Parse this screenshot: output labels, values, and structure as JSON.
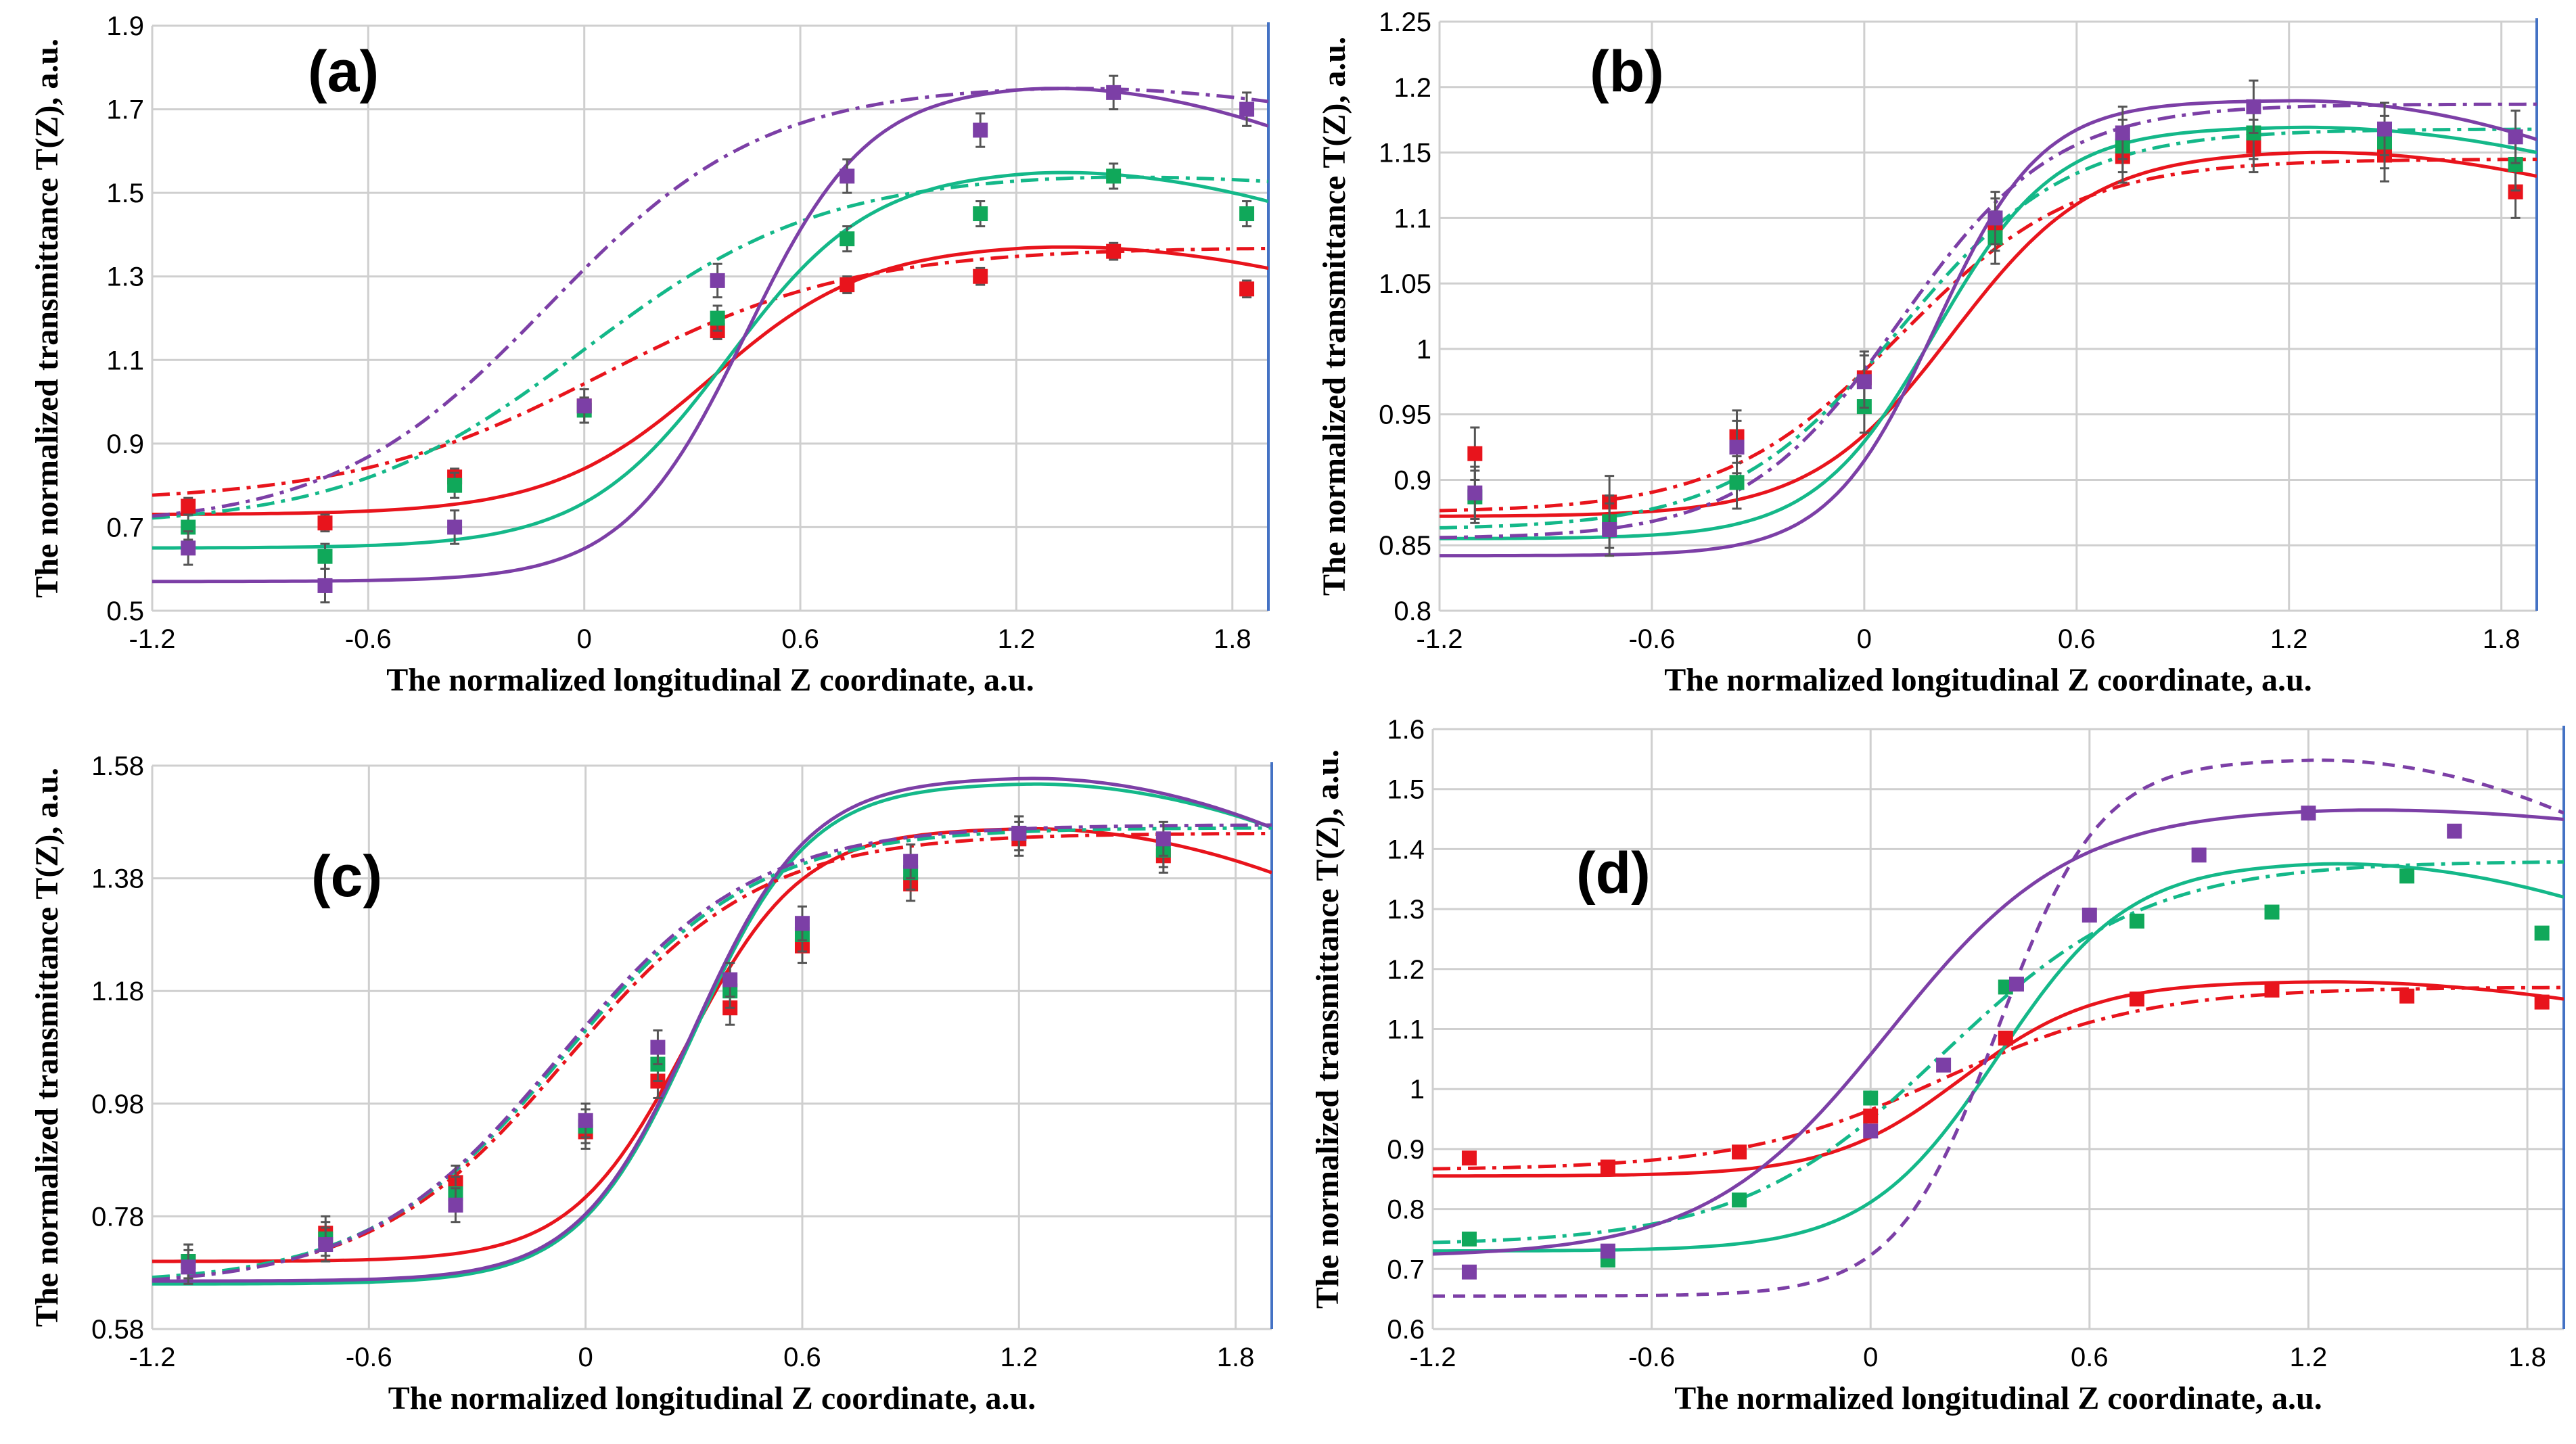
{
  "colors": {
    "red": "#e8141c",
    "green": "#10a85a",
    "purple": "#7c3fa6",
    "curve_green": "#14b889"
  },
  "chart_data": [
    {
      "type": "scatter",
      "panel_label": "(a)",
      "xlabel": "The normalized  longitudinal Z coordinate, a.u.",
      "ylabel": "The normalized  transmittance  T(Z), a.u.",
      "xlim": [
        -1.2,
        1.9
      ],
      "ylim": [
        0.5,
        1.9
      ],
      "x_ticks": [
        -1.2,
        -0.6,
        0,
        0.6,
        1.2,
        1.8
      ],
      "x_tick_labels": [
        "-1.2",
        "-0.6",
        "0",
        "0.6",
        "1.2",
        "1.8"
      ],
      "y_ticks": [
        0.5,
        0.7,
        0.9,
        1.1,
        1.3,
        1.5,
        1.7,
        1.9
      ],
      "y_tick_labels": [
        "0.5",
        "0.7",
        "0.9",
        "1.1",
        "1.3",
        "1.5",
        "1.7",
        "1.9"
      ],
      "series": [
        {
          "name": "red",
          "color": "#e8141c",
          "error": 0.02,
          "points": [
            [
              -1.1,
              0.75
            ],
            [
              -0.72,
              0.71
            ],
            [
              -0.36,
              0.82
            ],
            [
              0,
              0.99
            ],
            [
              0.37,
              1.17
            ],
            [
              0.73,
              1.28
            ],
            [
              1.1,
              1.3
            ],
            [
              1.47,
              1.36
            ],
            [
              1.84,
              1.27
            ]
          ]
        },
        {
          "name": "green",
          "color": "#10a85a",
          "error": 0.03,
          "points": [
            [
              -1.1,
              0.7
            ],
            [
              -0.72,
              0.63
            ],
            [
              -0.36,
              0.8
            ],
            [
              0,
              0.98
            ],
            [
              0.37,
              1.2
            ],
            [
              0.73,
              1.39
            ],
            [
              1.1,
              1.45
            ],
            [
              1.47,
              1.54
            ],
            [
              1.84,
              1.45
            ]
          ]
        },
        {
          "name": "purple",
          "color": "#7c3fa6",
          "error": 0.04,
          "points": [
            [
              -1.1,
              0.65
            ],
            [
              -0.72,
              0.56
            ],
            [
              -0.36,
              0.7
            ],
            [
              0,
              0.99
            ],
            [
              0.37,
              1.29
            ],
            [
              0.73,
              1.54
            ],
            [
              1.1,
              1.65
            ],
            [
              1.47,
              1.74
            ],
            [
              1.84,
              1.7
            ]
          ]
        }
      ],
      "curves": [
        {
          "name": "red-fit",
          "color": "#e8141c",
          "style": "solid",
          "low": 0.73,
          "high": 1.38,
          "center": 0.35,
          "width": 0.22,
          "drop": 0.06
        },
        {
          "name": "red-fit-dashdot",
          "color": "#e8141c",
          "style": "dashdot",
          "low": 0.76,
          "high": 1.37,
          "center": 0.05,
          "width": 0.35,
          "drop": 0.0
        },
        {
          "name": "green-fit",
          "color": "#14b889",
          "style": "solid",
          "low": 0.65,
          "high": 1.56,
          "center": 0.4,
          "width": 0.2,
          "drop": 0.08
        },
        {
          "name": "green-fit-dashdot",
          "color": "#14b889",
          "style": "dashdot",
          "low": 0.7,
          "high": 1.55,
          "center": 0.0,
          "width": 0.33,
          "drop": 0.02
        },
        {
          "name": "purple-fit",
          "color": "#7c3fa6",
          "style": "solid",
          "low": 0.57,
          "high": 1.76,
          "center": 0.45,
          "width": 0.17,
          "drop": 0.1
        },
        {
          "name": "purple-fit-dashdot",
          "color": "#7c3fa6",
          "style": "dashdot",
          "low": 0.7,
          "high": 1.76,
          "center": -0.1,
          "width": 0.3,
          "drop": 0.04
        }
      ]
    },
    {
      "type": "scatter",
      "panel_label": "(b)",
      "xlabel": "The normalized  longitudinal Z coordinate, a.u.",
      "ylabel": "The normalized  transmittance  T(Z), a.u.",
      "xlim": [
        -1.2,
        1.9
      ],
      "ylim": [
        0.8,
        1.25
      ],
      "x_ticks": [
        -1.2,
        -0.6,
        0,
        0.6,
        1.2,
        1.8
      ],
      "x_tick_labels": [
        "-1.2",
        "-0.6",
        "0",
        "0.6",
        "1.2",
        "1.8"
      ],
      "y_ticks": [
        0.8,
        0.85,
        0.9,
        0.95,
        1.0,
        1.05,
        1.1,
        1.15,
        1.2,
        1.25
      ],
      "y_tick_labels": [
        "0.8",
        "0.85",
        "0.9",
        "0.95",
        "1",
        "1.05",
        "1.1",
        "1.15",
        "1.2",
        "1.25"
      ],
      "series": [
        {
          "name": "red",
          "color": "#e8141c",
          "error": 0.02,
          "points": [
            [
              -1.1,
              0.92
            ],
            [
              -0.72,
              0.883
            ],
            [
              -0.36,
              0.933
            ],
            [
              0,
              0.978
            ],
            [
              0.37,
              1.095
            ],
            [
              0.73,
              1.147
            ],
            [
              1.1,
              1.155
            ],
            [
              1.47,
              1.148
            ],
            [
              1.84,
              1.12
            ]
          ]
        },
        {
          "name": "green",
          "color": "#10a85a",
          "error": 0.02,
          "points": [
            [
              -1.1,
              0.887
            ],
            [
              -0.72,
              0.868
            ],
            [
              -0.36,
              0.898
            ],
            [
              0,
              0.956
            ],
            [
              0.37,
              1.085
            ],
            [
              0.73,
              1.155
            ],
            [
              1.1,
              1.165
            ],
            [
              1.47,
              1.158
            ],
            [
              1.84,
              1.141
            ]
          ]
        },
        {
          "name": "purple",
          "color": "#7c3fa6",
          "error": 0.02,
          "points": [
            [
              -1.1,
              0.89
            ],
            [
              -0.72,
              0.862
            ],
            [
              -0.36,
              0.925
            ],
            [
              0,
              0.975
            ],
            [
              0.37,
              1.1
            ],
            [
              0.73,
              1.165
            ],
            [
              1.1,
              1.185
            ],
            [
              1.47,
              1.168
            ],
            [
              1.84,
              1.162
            ]
          ]
        }
      ],
      "curves": [
        {
          "name": "red-fit",
          "color": "#e8141c",
          "style": "solid",
          "low": 0.872,
          "high": 1.152,
          "center": 0.25,
          "width": 0.2,
          "drop": 0.02
        },
        {
          "name": "red-fit-dashdot",
          "color": "#e8141c",
          "style": "dashdot",
          "low": 0.875,
          "high": 1.145,
          "center": 0.1,
          "width": 0.25,
          "drop": 0.0
        },
        {
          "name": "green-fit",
          "color": "#14b889",
          "style": "solid",
          "low": 0.855,
          "high": 1.17,
          "center": 0.2,
          "width": 0.17,
          "drop": 0.02
        },
        {
          "name": "green-fit-dashdot",
          "color": "#14b889",
          "style": "dashdot",
          "low": 0.862,
          "high": 1.168,
          "center": 0.1,
          "width": 0.24,
          "drop": 0.0
        },
        {
          "name": "purple-fit",
          "color": "#7c3fa6",
          "style": "solid",
          "low": 0.842,
          "high": 1.19,
          "center": 0.2,
          "width": 0.15,
          "drop": 0.03
        },
        {
          "name": "purple-fit-dashdot",
          "color": "#7c3fa6",
          "style": "dashdot",
          "low": 0.855,
          "high": 1.187,
          "center": 0.1,
          "width": 0.22,
          "drop": 0.0
        }
      ]
    },
    {
      "type": "scatter",
      "panel_label": "(c)",
      "xlabel": "The normalized  longitudinal Z coordinate, a.u.",
      "ylabel": "The normalized  transmittance  T(Z), a.u.",
      "xlim": [
        -1.2,
        1.9
      ],
      "ylim": [
        0.58,
        1.58
      ],
      "x_ticks": [
        -1.2,
        -0.6,
        0,
        0.6,
        1.2,
        1.8
      ],
      "x_tick_labels": [
        "-1.2",
        "-0.6",
        "0",
        "0.6",
        "1.2",
        "1.8"
      ],
      "y_ticks": [
        0.58,
        0.78,
        0.98,
        1.18,
        1.38,
        1.58
      ],
      "y_tick_labels": [
        "0.58",
        "0.78",
        "0.98",
        "1.18",
        "1.38",
        "1.58"
      ],
      "series": [
        {
          "name": "red",
          "color": "#e8141c",
          "error": 0.03,
          "points": [
            [
              -1.1,
              0.7
            ],
            [
              -0.72,
              0.75
            ],
            [
              -0.36,
              0.84
            ],
            [
              0,
              0.93
            ],
            [
              0.2,
              1.02
            ],
            [
              0.4,
              1.15
            ],
            [
              0.6,
              1.26
            ],
            [
              0.9,
              1.37
            ],
            [
              1.2,
              1.45
            ],
            [
              1.6,
              1.42
            ]
          ]
        },
        {
          "name": "green",
          "color": "#10a85a",
          "error": 0.03,
          "points": [
            [
              -1.1,
              0.7
            ],
            [
              -0.72,
              0.74
            ],
            [
              -0.36,
              0.82
            ],
            [
              0,
              0.94
            ],
            [
              0.2,
              1.05
            ],
            [
              0.4,
              1.18
            ],
            [
              0.6,
              1.28
            ],
            [
              0.9,
              1.39
            ],
            [
              1.2,
              1.46
            ],
            [
              1.6,
              1.43
            ]
          ]
        },
        {
          "name": "purple",
          "color": "#7c3fa6",
          "error": 0.03,
          "points": [
            [
              -1.1,
              0.69
            ],
            [
              -0.72,
              0.73
            ],
            [
              -0.36,
              0.8
            ],
            [
              0,
              0.95
            ],
            [
              0.2,
              1.08
            ],
            [
              0.4,
              1.2
            ],
            [
              0.6,
              1.3
            ],
            [
              0.9,
              1.41
            ],
            [
              1.2,
              1.46
            ],
            [
              1.6,
              1.45
            ]
          ]
        }
      ],
      "curves": [
        {
          "name": "red-fit",
          "color": "#e8141c",
          "style": "solid",
          "low": 0.7,
          "high": 1.47,
          "center": 0.28,
          "width": 0.16,
          "drop": 0.08
        },
        {
          "name": "green-fit",
          "color": "#14b889",
          "style": "solid",
          "low": 0.66,
          "high": 1.55,
          "center": 0.3,
          "width": 0.16,
          "drop": 0.08
        },
        {
          "name": "purple-fit",
          "color": "#7c3fa6",
          "style": "solid",
          "low": 0.665,
          "high": 1.56,
          "center": 0.3,
          "width": 0.16,
          "drop": 0.09
        },
        {
          "name": "red-fit-dashdot",
          "color": "#e8141c",
          "style": "dashdot",
          "low": 0.66,
          "high": 1.46,
          "center": -0.05,
          "width": 0.27,
          "drop": 0.0
        },
        {
          "name": "green-fit-dashdot",
          "color": "#14b889",
          "style": "dashdot",
          "low": 0.66,
          "high": 1.47,
          "center": -0.06,
          "width": 0.27,
          "drop": 0.0
        },
        {
          "name": "purple-fit-dashdot",
          "color": "#7c3fa6",
          "style": "dashdot",
          "low": 0.655,
          "high": 1.475,
          "center": -0.07,
          "width": 0.27,
          "drop": 0.0
        }
      ]
    },
    {
      "type": "scatter",
      "panel_label": "(d)",
      "xlabel": "The normalized  longitudinal Z coordinate, a.u.",
      "ylabel": "The normalized  transmittance  T(Z), a.u.",
      "xlim": [
        -1.2,
        1.9
      ],
      "ylim": [
        0.6,
        1.6
      ],
      "x_ticks": [
        -1.2,
        -0.6,
        0,
        0.6,
        1.2,
        1.8
      ],
      "x_tick_labels": [
        "-1.2",
        "-0.6",
        "0",
        "0.6",
        "1.2",
        "1.8"
      ],
      "y_ticks": [
        0.6,
        0.7,
        0.8,
        0.9,
        1.0,
        1.1,
        1.2,
        1.3,
        1.4,
        1.5,
        1.6
      ],
      "y_tick_labels": [
        "0.6",
        "0.7",
        "0.8",
        "0.9",
        "1",
        "1.1",
        "1.2",
        "1.3",
        "1.4",
        "1.5",
        "1.6"
      ],
      "series": [
        {
          "name": "red",
          "color": "#e8141c",
          "error": 0,
          "points": [
            [
              -1.1,
              0.885
            ],
            [
              -0.72,
              0.87
            ],
            [
              -0.36,
              0.895
            ],
            [
              0,
              0.955
            ],
            [
              0.37,
              1.085
            ],
            [
              0.73,
              1.15
            ],
            [
              1.1,
              1.165
            ],
            [
              1.47,
              1.155
            ],
            [
              1.84,
              1.145
            ]
          ]
        },
        {
          "name": "green",
          "color": "#10a85a",
          "error": 0,
          "points": [
            [
              -1.1,
              0.75
            ],
            [
              -0.72,
              0.715
            ],
            [
              -0.36,
              0.815
            ],
            [
              0,
              0.985
            ],
            [
              0.37,
              1.17
            ],
            [
              0.73,
              1.28
            ],
            [
              1.1,
              1.295
            ],
            [
              1.47,
              1.355
            ],
            [
              1.84,
              1.26
            ]
          ]
        },
        {
          "name": "purple",
          "color": "#7c3fa6",
          "error": 0,
          "points": [
            [
              -1.1,
              0.695
            ],
            [
              -0.72,
              0.73
            ],
            [
              0,
              0.93
            ],
            [
              0.2,
              1.04
            ],
            [
              0.4,
              1.175
            ],
            [
              0.6,
              1.29
            ],
            [
              0.9,
              1.39
            ],
            [
              1.2,
              1.46
            ],
            [
              1.6,
              1.43
            ]
          ]
        }
      ],
      "curves": [
        {
          "name": "red-fit",
          "color": "#e8141c",
          "style": "solid",
          "low": 0.855,
          "high": 1.18,
          "center": 0.25,
          "width": 0.18,
          "drop": 0.03
        },
        {
          "name": "red-fit-dashdot",
          "color": "#e8141c",
          "style": "dashdot",
          "low": 0.865,
          "high": 1.17,
          "center": 0.2,
          "width": 0.28,
          "drop": 0.0
        },
        {
          "name": "green-fit",
          "color": "#14b889",
          "style": "solid",
          "low": 0.73,
          "high": 1.38,
          "center": 0.35,
          "width": 0.18,
          "drop": 0.06
        },
        {
          "name": "green-fit-dashdot",
          "color": "#14b889",
          "style": "dashdot",
          "low": 0.74,
          "high": 1.38,
          "center": 0.2,
          "width": 0.28,
          "drop": 0.0
        },
        {
          "name": "purple-fit",
          "color": "#7c3fa6",
          "style": "solid",
          "low": 0.72,
          "high": 1.47,
          "center": 0.05,
          "width": 0.25,
          "drop": 0.02
        },
        {
          "name": "purple-fit-dashed",
          "color": "#7c3fa6",
          "style": "dashed",
          "low": 0.655,
          "high": 1.55,
          "center": 0.35,
          "width": 0.14,
          "drop": 0.09
        }
      ]
    }
  ]
}
